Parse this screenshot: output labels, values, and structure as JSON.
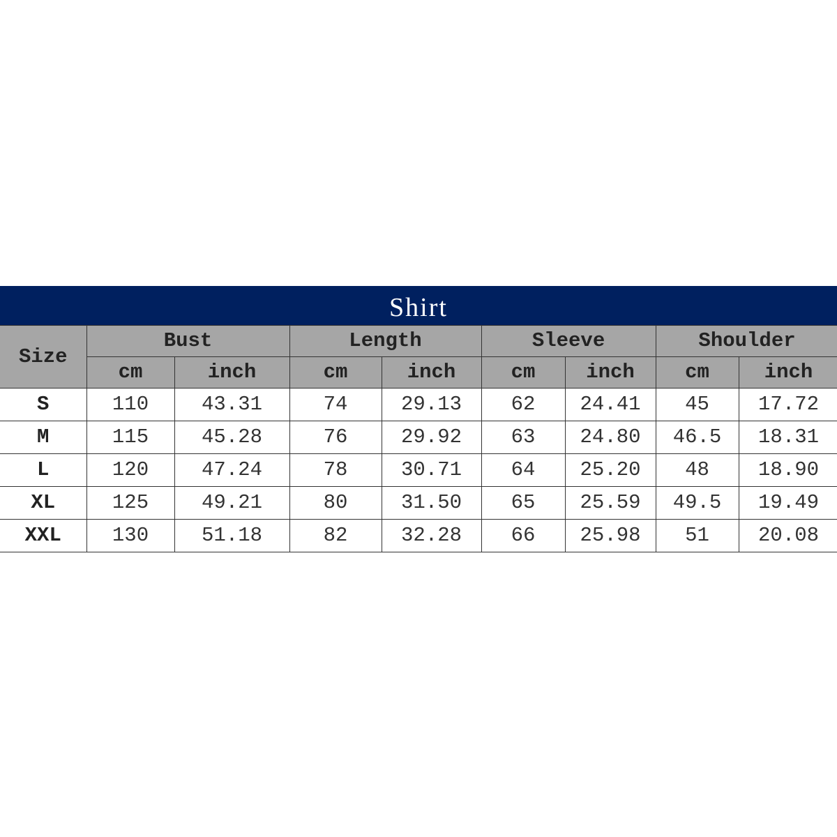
{
  "title": "Shirt",
  "size_label": "Size",
  "groups": [
    "Bust",
    "Length",
    "Sleeve",
    "Shoulder"
  ],
  "units": [
    "cm",
    "inch"
  ],
  "rows": [
    {
      "size": "S",
      "values": [
        "110",
        "43.31",
        "74",
        "29.13",
        "62",
        "24.41",
        "45",
        "17.72"
      ]
    },
    {
      "size": "M",
      "values": [
        "115",
        "45.28",
        "76",
        "29.92",
        "63",
        "24.80",
        "46.5",
        "18.31"
      ]
    },
    {
      "size": "L",
      "values": [
        "120",
        "47.24",
        "78",
        "30.71",
        "64",
        "25.20",
        "48",
        "18.90"
      ]
    },
    {
      "size": "XL",
      "values": [
        "125",
        "49.21",
        "80",
        "31.50",
        "65",
        "25.59",
        "49.5",
        "19.49"
      ]
    },
    {
      "size": "XXL",
      "values": [
        "130",
        "51.18",
        "82",
        "32.28",
        "66",
        "25.98",
        "51",
        "20.08"
      ]
    }
  ],
  "colors": {
    "title_bg": "#00205f",
    "header_bg": "#a6a6a6"
  }
}
